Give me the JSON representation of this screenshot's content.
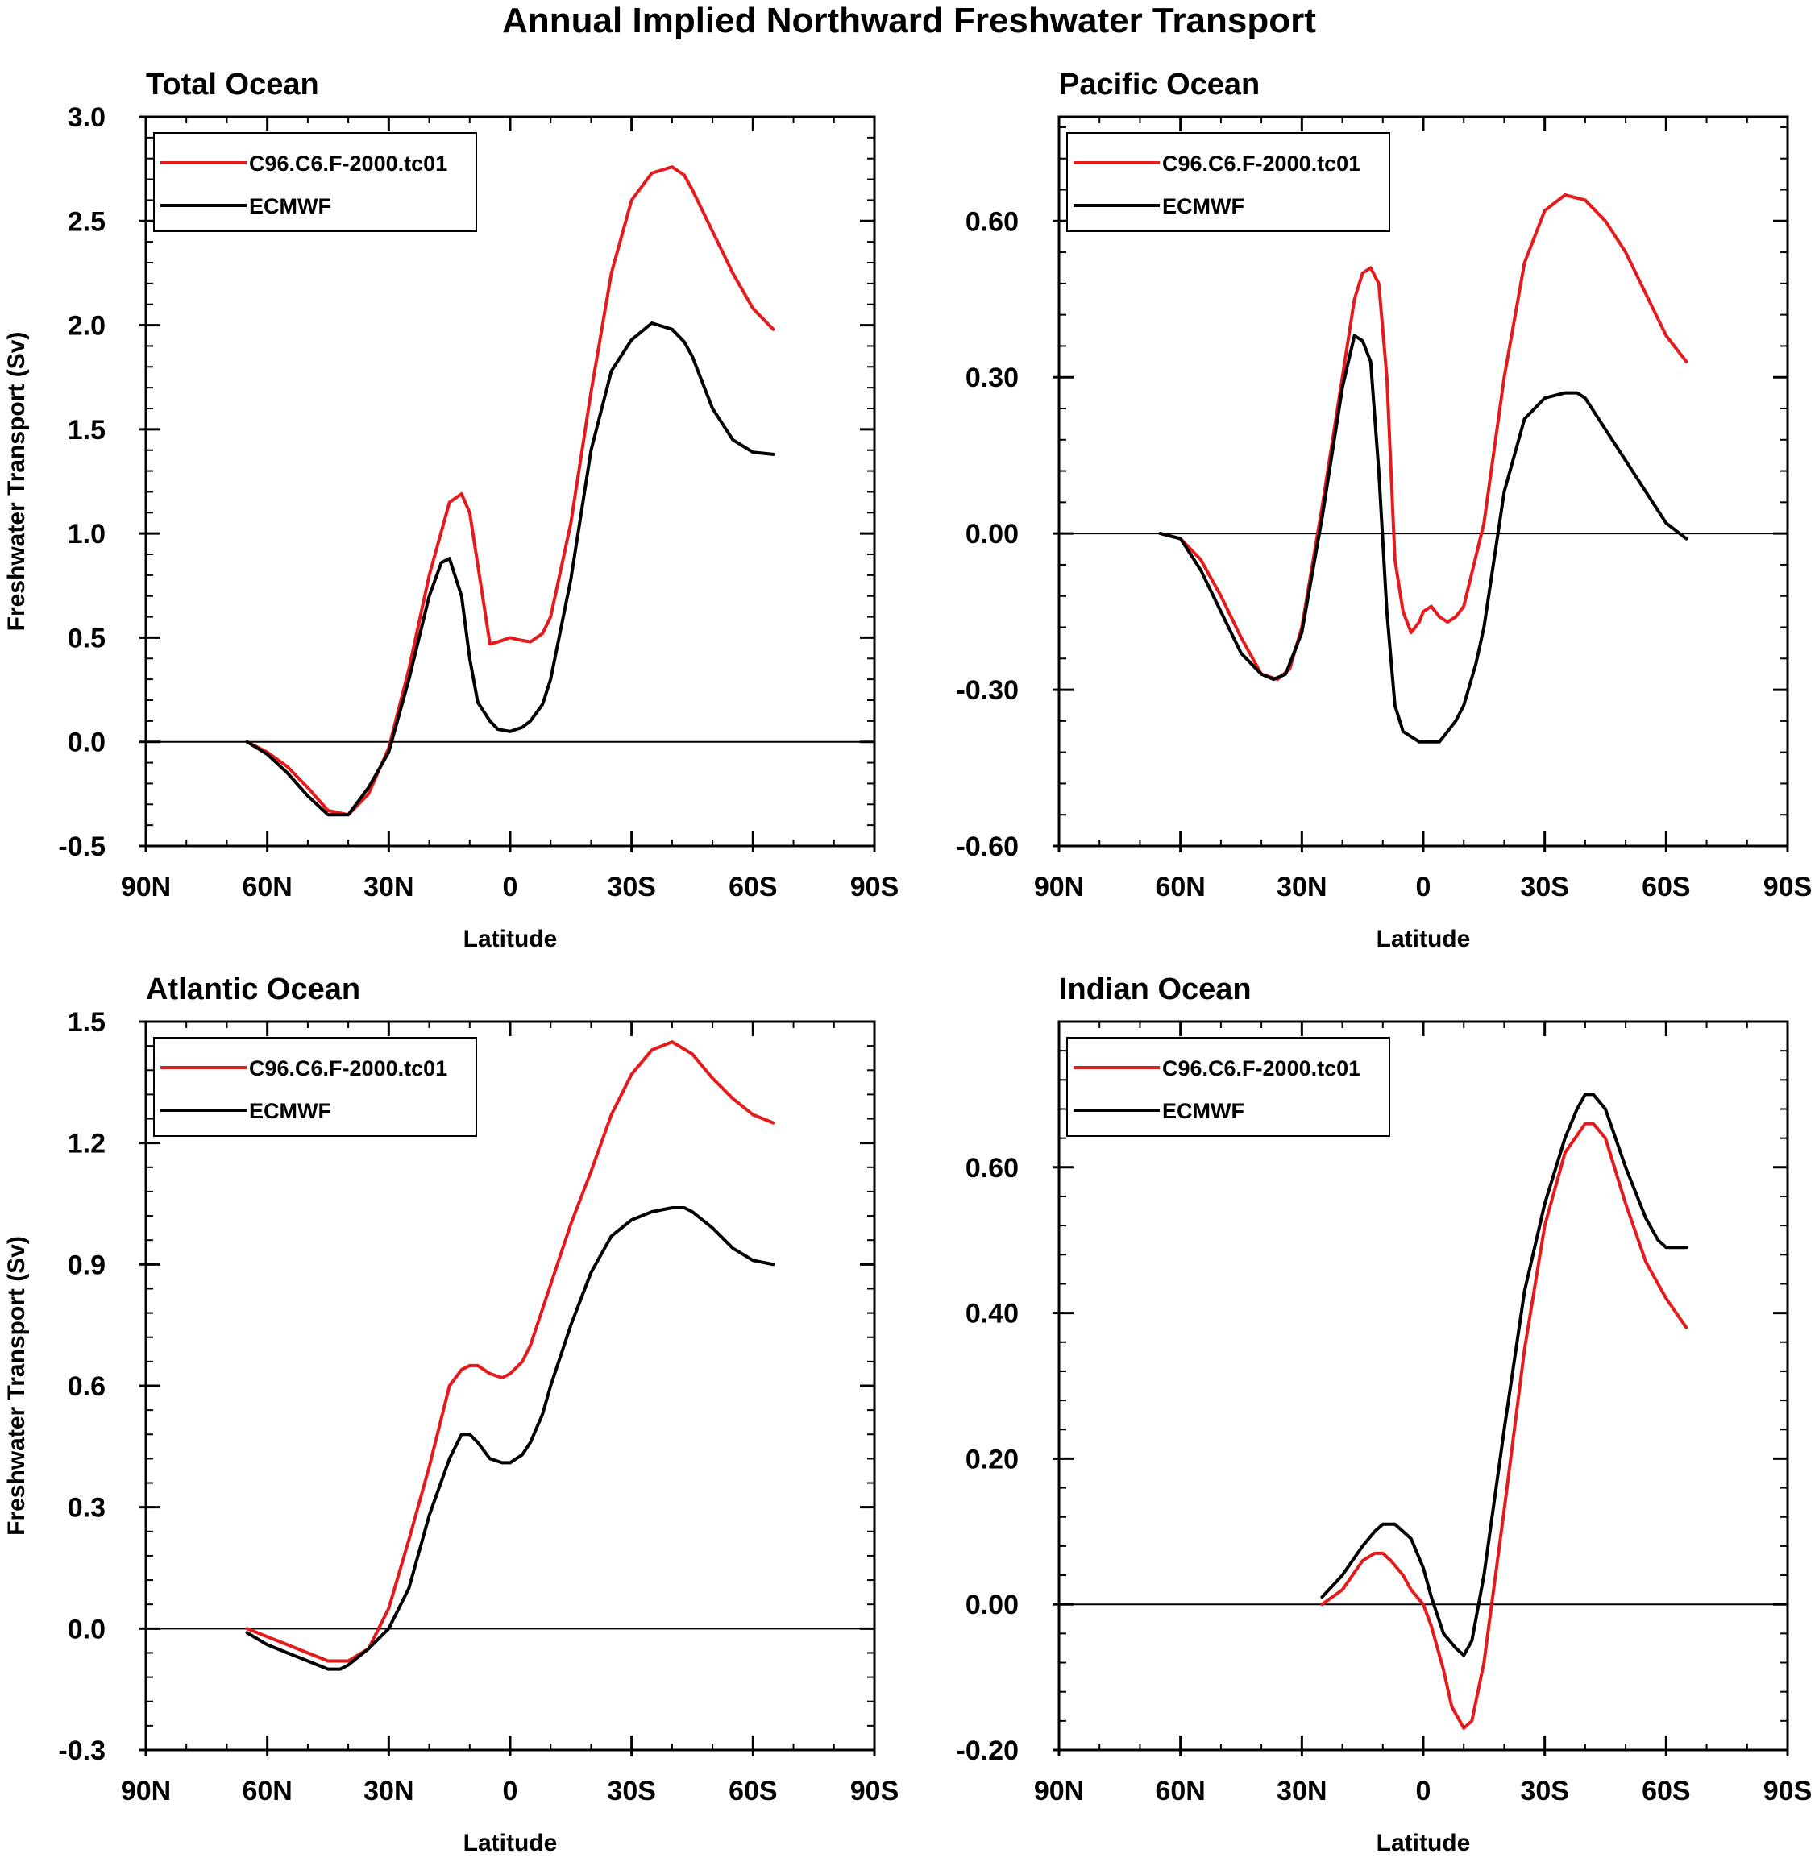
{
  "figure_title": "Annual Implied Northward Freshwater Transport",
  "colors": {
    "model": "#e41a1c",
    "reference": "#000000",
    "axis": "#000000"
  },
  "chart_data": [
    {
      "type": "line",
      "title": "Total Ocean",
      "xlabel": "Latitude",
      "ylabel": "Freshwater Transport (Sv)",
      "xlim": [
        -90,
        90
      ],
      "xticks": [
        -90,
        -60,
        -30,
        0,
        30,
        60,
        90
      ],
      "xticklabels": [
        "90N",
        "60N",
        "30N",
        "0",
        "30S",
        "60S",
        "90S"
      ],
      "ylim": [
        -0.5,
        3.0
      ],
      "yticks": [
        -0.5,
        0.0,
        0.5,
        1.0,
        1.5,
        2.0,
        2.5,
        3.0
      ],
      "yticklabels": [
        "-0.5",
        "0.0",
        "0.5",
        "1.0",
        "1.5",
        "2.0",
        "2.5",
        "3.0"
      ],
      "legend": "top-left",
      "zero_line": true,
      "series": [
        {
          "name": "C96.C6.F-2000.tc01",
          "color": "#e41a1c",
          "x": [
            -65,
            -60,
            -55,
            -50,
            -45,
            -40,
            -35,
            -30,
            -25,
            -20,
            -15,
            -12,
            -10,
            -8,
            -5,
            -3,
            0,
            2,
            5,
            8,
            10,
            15,
            20,
            25,
            30,
            35,
            40,
            43,
            45,
            50,
            55,
            60,
            65
          ],
          "y": [
            0.0,
            -0.05,
            -0.12,
            -0.22,
            -0.33,
            -0.35,
            -0.25,
            -0.03,
            0.35,
            0.8,
            1.15,
            1.19,
            1.1,
            0.85,
            0.47,
            0.48,
            0.5,
            0.49,
            0.48,
            0.52,
            0.6,
            1.05,
            1.68,
            2.25,
            2.6,
            2.73,
            2.76,
            2.72,
            2.65,
            2.45,
            2.25,
            2.08,
            1.98
          ]
        },
        {
          "name": "ECMWF",
          "color": "#000000",
          "x": [
            -65,
            -60,
            -55,
            -50,
            -45,
            -40,
            -35,
            -30,
            -25,
            -20,
            -17,
            -15,
            -12,
            -10,
            -8,
            -5,
            -3,
            0,
            3,
            5,
            8,
            10,
            15,
            20,
            25,
            30,
            35,
            40,
            43,
            45,
            50,
            55,
            60,
            65
          ],
          "y": [
            0.0,
            -0.06,
            -0.15,
            -0.26,
            -0.35,
            -0.35,
            -0.22,
            -0.05,
            0.3,
            0.7,
            0.86,
            0.88,
            0.7,
            0.4,
            0.19,
            0.1,
            0.06,
            0.05,
            0.07,
            0.1,
            0.18,
            0.3,
            0.78,
            1.4,
            1.78,
            1.93,
            2.01,
            1.98,
            1.92,
            1.85,
            1.6,
            1.45,
            1.39,
            1.38
          ]
        }
      ]
    },
    {
      "type": "line",
      "title": "Pacific Ocean",
      "xlabel": "Latitude",
      "ylabel": "",
      "xlim": [
        -90,
        90
      ],
      "xticks": [
        -90,
        -60,
        -30,
        0,
        30,
        60,
        90
      ],
      "xticklabels": [
        "90N",
        "60N",
        "30N",
        "0",
        "30S",
        "60S",
        "90S"
      ],
      "ylim": [
        -0.6,
        0.8
      ],
      "yticks": [
        -0.6,
        -0.3,
        0.0,
        0.3,
        0.6
      ],
      "yticklabels": [
        "-0.60",
        "-0.30",
        "0.00",
        "0.30",
        "0.60"
      ],
      "legend": "top-left",
      "zero_line": true,
      "series": [
        {
          "name": "C96.C6.F-2000.tc01",
          "color": "#e41a1c",
          "x": [
            -65,
            -60,
            -55,
            -50,
            -45,
            -40,
            -36,
            -33,
            -30,
            -25,
            -20,
            -17,
            -15,
            -13,
            -11,
            -9,
            -7,
            -5,
            -3,
            -1,
            0,
            2,
            4,
            6,
            8,
            10,
            15,
            20,
            25,
            30,
            35,
            40,
            45,
            50,
            55,
            60,
            65
          ],
          "y": [
            0.0,
            -0.01,
            -0.05,
            -0.12,
            -0.2,
            -0.27,
            -0.28,
            -0.26,
            -0.18,
            0.05,
            0.3,
            0.45,
            0.5,
            0.51,
            0.48,
            0.3,
            -0.05,
            -0.15,
            -0.19,
            -0.17,
            -0.15,
            -0.14,
            -0.16,
            -0.17,
            -0.16,
            -0.14,
            0.02,
            0.3,
            0.52,
            0.62,
            0.65,
            0.64,
            0.6,
            0.54,
            0.46,
            0.38,
            0.33
          ]
        },
        {
          "name": "ECMWF",
          "color": "#000000",
          "x": [
            -65,
            -60,
            -55,
            -50,
            -45,
            -40,
            -37,
            -34,
            -30,
            -25,
            -20,
            -17,
            -15,
            -13,
            -11,
            -9,
            -7,
            -5,
            -3,
            -1,
            0,
            2,
            4,
            6,
            8,
            10,
            13,
            15,
            20,
            25,
            30,
            35,
            38,
            40,
            45,
            50,
            55,
            60,
            65
          ],
          "y": [
            0.0,
            -0.01,
            -0.07,
            -0.15,
            -0.23,
            -0.27,
            -0.28,
            -0.27,
            -0.19,
            0.03,
            0.28,
            0.38,
            0.37,
            0.33,
            0.12,
            -0.15,
            -0.33,
            -0.38,
            -0.39,
            -0.4,
            -0.4,
            -0.4,
            -0.4,
            -0.38,
            -0.36,
            -0.33,
            -0.25,
            -0.18,
            0.08,
            0.22,
            0.26,
            0.27,
            0.27,
            0.26,
            0.2,
            0.14,
            0.08,
            0.02,
            -0.01
          ]
        }
      ]
    },
    {
      "type": "line",
      "title": "Atlantic Ocean",
      "xlabel": "Latitude",
      "ylabel": "Freshwater Transport (Sv)",
      "xlim": [
        -90,
        90
      ],
      "xticks": [
        -90,
        -60,
        -30,
        0,
        30,
        60,
        90
      ],
      "xticklabels": [
        "90N",
        "60N",
        "30N",
        "0",
        "30S",
        "60S",
        "90S"
      ],
      "ylim": [
        -0.3,
        1.5
      ],
      "yticks": [
        -0.3,
        0.0,
        0.3,
        0.6,
        0.9,
        1.2,
        1.5
      ],
      "yticklabels": [
        "-0.3",
        "0.0",
        "0.3",
        "0.6",
        "0.9",
        "1.2",
        "1.5"
      ],
      "legend": "top-left",
      "zero_line": true,
      "series": [
        {
          "name": "C96.C6.F-2000.tc01",
          "color": "#e41a1c",
          "x": [
            -65,
            -60,
            -55,
            -50,
            -45,
            -40,
            -35,
            -30,
            -25,
            -20,
            -15,
            -12,
            -10,
            -8,
            -5,
            -2,
            0,
            3,
            5,
            10,
            15,
            20,
            25,
            30,
            35,
            40,
            45,
            50,
            55,
            60,
            65
          ],
          "y": [
            0.0,
            -0.02,
            -0.04,
            -0.06,
            -0.08,
            -0.08,
            -0.05,
            0.05,
            0.22,
            0.4,
            0.6,
            0.64,
            0.65,
            0.65,
            0.63,
            0.62,
            0.63,
            0.66,
            0.7,
            0.85,
            1.0,
            1.13,
            1.27,
            1.37,
            1.43,
            1.45,
            1.42,
            1.36,
            1.31,
            1.27,
            1.25
          ]
        },
        {
          "name": "ECMWF",
          "color": "#000000",
          "x": [
            -65,
            -60,
            -55,
            -50,
            -45,
            -42,
            -40,
            -35,
            -30,
            -25,
            -20,
            -15,
            -12,
            -10,
            -8,
            -5,
            -2,
            0,
            3,
            5,
            8,
            10,
            15,
            20,
            25,
            30,
            35,
            40,
            43,
            45,
            50,
            55,
            60,
            65
          ],
          "y": [
            -0.01,
            -0.04,
            -0.06,
            -0.08,
            -0.1,
            -0.1,
            -0.09,
            -0.05,
            0.0,
            0.1,
            0.28,
            0.42,
            0.48,
            0.48,
            0.46,
            0.42,
            0.41,
            0.41,
            0.43,
            0.46,
            0.53,
            0.6,
            0.75,
            0.88,
            0.97,
            1.01,
            1.03,
            1.04,
            1.04,
            1.03,
            0.99,
            0.94,
            0.91,
            0.9
          ]
        }
      ]
    },
    {
      "type": "line",
      "title": "Indian Ocean",
      "xlabel": "Latitude",
      "ylabel": "",
      "xlim": [
        -90,
        90
      ],
      "xticks": [
        -90,
        -60,
        -30,
        0,
        30,
        60,
        90
      ],
      "xticklabels": [
        "90N",
        "60N",
        "30N",
        "0",
        "30S",
        "60S",
        "90S"
      ],
      "ylim": [
        -0.2,
        0.8
      ],
      "yticks": [
        -0.2,
        0.0,
        0.2,
        0.4,
        0.6
      ],
      "yticklabels": [
        "-0.20",
        "0.00",
        "0.20",
        "0.40",
        "0.60"
      ],
      "legend": "top-left",
      "zero_line": true,
      "series": [
        {
          "name": "C96.C6.F-2000.tc01",
          "color": "#e41a1c",
          "x": [
            -25,
            -20,
            -15,
            -12,
            -10,
            -8,
            -5,
            -3,
            0,
            2,
            5,
            7,
            10,
            12,
            15,
            20,
            25,
            30,
            35,
            40,
            42,
            45,
            50,
            55,
            60,
            65
          ],
          "y": [
            0.0,
            0.02,
            0.06,
            0.07,
            0.07,
            0.06,
            0.04,
            0.02,
            0.0,
            -0.03,
            -0.09,
            -0.14,
            -0.17,
            -0.16,
            -0.08,
            0.13,
            0.35,
            0.52,
            0.62,
            0.66,
            0.66,
            0.64,
            0.55,
            0.47,
            0.42,
            0.38
          ]
        },
        {
          "name": "ECMWF",
          "color": "#000000",
          "x": [
            -25,
            -20,
            -15,
            -12,
            -10,
            -7,
            -5,
            -3,
            0,
            2,
            5,
            8,
            10,
            12,
            15,
            20,
            25,
            30,
            35,
            38,
            40,
            42,
            45,
            50,
            55,
            58,
            60,
            65
          ],
          "y": [
            0.01,
            0.04,
            0.08,
            0.1,
            0.11,
            0.11,
            0.1,
            0.09,
            0.05,
            0.01,
            -0.04,
            -0.06,
            -0.07,
            -0.05,
            0.04,
            0.24,
            0.43,
            0.55,
            0.64,
            0.68,
            0.7,
            0.7,
            0.68,
            0.6,
            0.53,
            0.5,
            0.49,
            0.49
          ]
        }
      ]
    }
  ]
}
